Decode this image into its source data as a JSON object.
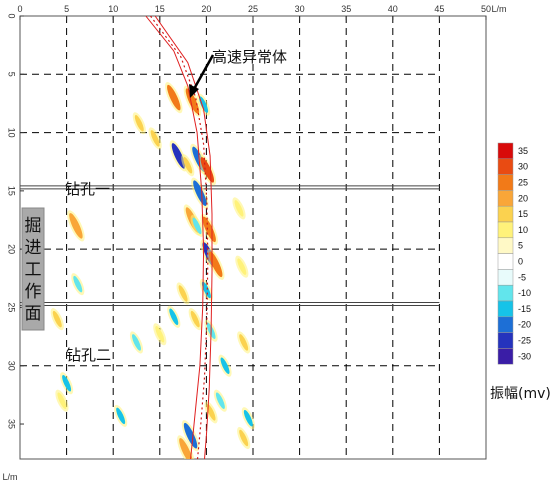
{
  "chart_data": {
    "type": "heatmap",
    "x_unit": "L/m",
    "y_unit": "L/m",
    "xlim": [
      0,
      50
    ],
    "ylim": [
      0,
      38
    ],
    "x_ticks": [
      0,
      5,
      10,
      15,
      20,
      25,
      30,
      35,
      40,
      45,
      50
    ],
    "x_tick_labels": [
      "0",
      "5",
      "10",
      "15",
      "20",
      "25",
      "30",
      "35",
      "40",
      "45",
      "50"
    ],
    "y_ticks": [
      0,
      5,
      10,
      15,
      20,
      25,
      30,
      35
    ],
    "y_tick_labels": [
      "0",
      "5",
      "10",
      "15",
      "20",
      "25",
      "30",
      "35"
    ],
    "y_dash_gridlines": [
      5,
      10,
      20,
      30
    ],
    "grid": true,
    "annotations": {
      "anomaly_label": "高速异常体",
      "borehole_1": "钻孔一",
      "borehole_2": "钻孔二",
      "tunnel_face": [
        "掘",
        "进",
        "工",
        "作",
        "面"
      ]
    },
    "boreholes_depth": [
      14.7,
      24.7
    ],
    "colorbar": {
      "title": "振幅(mv)",
      "legend_position": "right",
      "levels": [
        35,
        30,
        25,
        20,
        15,
        10,
        5,
        0,
        -5,
        -10,
        -15,
        -20,
        -25,
        -30
      ],
      "labels": [
        "35",
        "30",
        "25",
        "20",
        "15",
        "10",
        "5",
        "0",
        "-5",
        "-10",
        "-15",
        "-20",
        "-25",
        "-30"
      ],
      "colors": [
        "#d80a0a",
        "#e94b12",
        "#f27a18",
        "#f9a638",
        "#fbd24f",
        "#fff27a",
        "#fff9c6",
        "#ffffff",
        "#e8fbfb",
        "#62e5ec",
        "#16c3e8",
        "#1d6fd6",
        "#2533bd",
        "#3a1da6"
      ]
    },
    "anomaly_band": {
      "left_edge": [
        [
          13.5,
          0
        ],
        [
          16.5,
          3
        ],
        [
          18.0,
          6
        ],
        [
          19.0,
          10
        ],
        [
          19.5,
          15
        ],
        [
          19.7,
          20
        ],
        [
          19.6,
          25
        ],
        [
          19.3,
          30
        ],
        [
          18.8,
          34
        ],
        [
          18.3,
          38
        ]
      ],
      "right_edge": [
        [
          14.5,
          0
        ],
        [
          18.0,
          4
        ],
        [
          19.7,
          8
        ],
        [
          20.4,
          12
        ],
        [
          20.6,
          17
        ],
        [
          20.6,
          22
        ],
        [
          20.5,
          27
        ],
        [
          20.3,
          32
        ],
        [
          20.0,
          36
        ],
        [
          19.8,
          38
        ]
      ]
    },
    "amplitude_blobs": [
      {
        "x": 16.5,
        "y": 7.0,
        "v": 25
      },
      {
        "x": 18.5,
        "y": 7.3,
        "v": 25
      },
      {
        "x": 19.7,
        "y": 7.6,
        "v": -15
      },
      {
        "x": 12.8,
        "y": 9.2,
        "v": 15
      },
      {
        "x": 14.5,
        "y": 10.5,
        "v": 15
      },
      {
        "x": 17.0,
        "y": 12.0,
        "v": -25
      },
      {
        "x": 18.0,
        "y": 12.8,
        "v": 15
      },
      {
        "x": 19.2,
        "y": 12.3,
        "v": -20
      },
      {
        "x": 20.1,
        "y": 13.2,
        "v": 30
      },
      {
        "x": 19.3,
        "y": 15.2,
        "v": -20
      },
      {
        "x": 18.5,
        "y": 17.5,
        "v": 20
      },
      {
        "x": 19.0,
        "y": 18.0,
        "v": -10
      },
      {
        "x": 20.3,
        "y": 18.3,
        "v": 25
      },
      {
        "x": 23.5,
        "y": 16.5,
        "v": 10
      },
      {
        "x": 6.0,
        "y": 18.0,
        "v": 20
      },
      {
        "x": 20.3,
        "y": 20.5,
        "v": -25
      },
      {
        "x": 21.0,
        "y": 21.3,
        "v": 25
      },
      {
        "x": 23.8,
        "y": 21.5,
        "v": 10
      },
      {
        "x": 6.2,
        "y": 23.0,
        "v": -10
      },
      {
        "x": 20.0,
        "y": 23.5,
        "v": -15
      },
      {
        "x": 17.5,
        "y": 23.8,
        "v": 15
      },
      {
        "x": 4.0,
        "y": 26.0,
        "v": 15
      },
      {
        "x": 16.5,
        "y": 25.8,
        "v": -15
      },
      {
        "x": 18.8,
        "y": 26.0,
        "v": 15
      },
      {
        "x": 20.5,
        "y": 27.0,
        "v": -10
      },
      {
        "x": 15.0,
        "y": 27.3,
        "v": 10
      },
      {
        "x": 12.5,
        "y": 28.0,
        "v": -10
      },
      {
        "x": 22.0,
        "y": 30.0,
        "v": -15
      },
      {
        "x": 24.0,
        "y": 28.0,
        "v": 15
      },
      {
        "x": 5.0,
        "y": 31.5,
        "v": -15
      },
      {
        "x": 4.5,
        "y": 33.0,
        "v": 10
      },
      {
        "x": 10.8,
        "y": 34.3,
        "v": -15
      },
      {
        "x": 21.5,
        "y": 33.0,
        "v": -10
      },
      {
        "x": 20.5,
        "y": 34.0,
        "v": 15
      },
      {
        "x": 24.5,
        "y": 34.5,
        "v": -15
      },
      {
        "x": 24.0,
        "y": 36.2,
        "v": 15
      },
      {
        "x": 18.3,
        "y": 36.0,
        "v": -20
      },
      {
        "x": 17.8,
        "y": 37.3,
        "v": 20
      }
    ]
  }
}
